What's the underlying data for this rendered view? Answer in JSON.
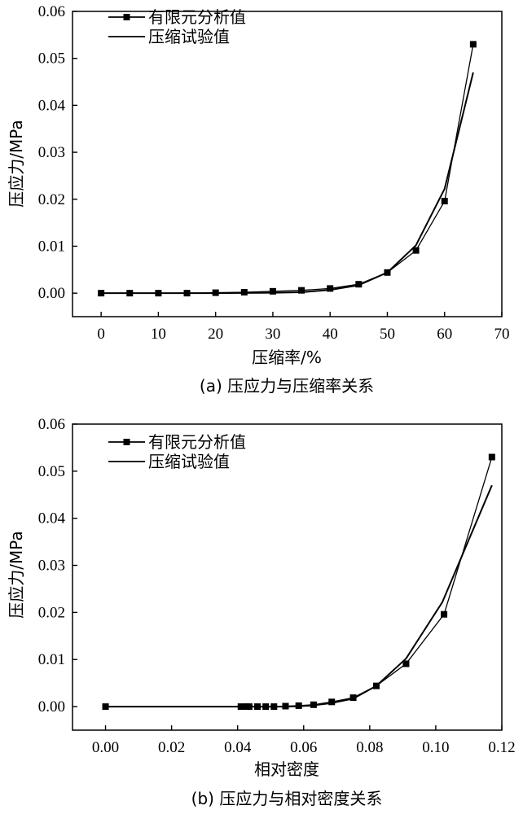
{
  "chart_data": [
    {
      "type": "line",
      "caption": "(a) 压应力与压缩率关系",
      "xlabel": "压缩率/%",
      "ylabel": "压应力/MPa",
      "xlim": [
        -5,
        70
      ],
      "ylim": [
        -0.005,
        0.06
      ],
      "xticks": [
        "0",
        "10",
        "20",
        "30",
        "40",
        "50",
        "60",
        "70"
      ],
      "yticks": [
        "0.00",
        "0.01",
        "0.02",
        "0.03",
        "0.04",
        "0.05",
        "0.06"
      ],
      "legend_position": "top-left",
      "series": [
        {
          "name": "有限元分析值",
          "marker": "square",
          "x": [
            0,
            5,
            10,
            15,
            20,
            25,
            30,
            35,
            40,
            45,
            50,
            55,
            60,
            65
          ],
          "y": [
            0.0,
            0.0,
            0.0,
            0.0,
            0.0001,
            0.0002,
            0.0004,
            0.0006,
            0.001,
            0.0019,
            0.0044,
            0.0091,
            0.0196,
            0.053
          ]
        },
        {
          "name": "压缩试验值",
          "marker": "none",
          "x": [
            0,
            10,
            20,
            30,
            35,
            40,
            45,
            50,
            55,
            60,
            65
          ],
          "y": [
            0.0,
            0.0,
            0.0,
            0.0001,
            0.0002,
            0.0007,
            0.0017,
            0.0044,
            0.0102,
            0.0222,
            0.047
          ]
        }
      ]
    },
    {
      "type": "line",
      "caption": "(b) 压应力与相对密度关系",
      "xlabel": "相对密度",
      "ylabel": "压应力/MPa",
      "xlim": [
        -0.01,
        0.12
      ],
      "ylim": [
        -0.005,
        0.06
      ],
      "xticks": [
        "0.00",
        "0.02",
        "0.04",
        "0.06",
        "0.08",
        "0.10",
        "0.12"
      ],
      "yticks": [
        "0.00",
        "0.01",
        "0.02",
        "0.03",
        "0.04",
        "0.05",
        "0.06"
      ],
      "legend_position": "top-left",
      "series": [
        {
          "name": "有限元分析值",
          "marker": "square",
          "x": [
            0.0,
            0.041,
            0.0425,
            0.0435,
            0.046,
            0.0485,
            0.051,
            0.0545,
            0.0585,
            0.063,
            0.0685,
            0.075,
            0.082,
            0.091,
            0.1025,
            0.117
          ],
          "y": [
            0.0,
            0.0,
            0.0,
            0.0,
            0.0,
            0.0,
            0.0,
            0.0001,
            0.0002,
            0.0004,
            0.001,
            0.0019,
            0.0044,
            0.0091,
            0.0196,
            0.053
          ]
        },
        {
          "name": "压缩试验值",
          "marker": "none",
          "x": [
            0.0,
            0.045,
            0.055,
            0.062,
            0.068,
            0.075,
            0.082,
            0.091,
            0.102,
            0.117
          ],
          "y": [
            0.0,
            0.0,
            0.0,
            0.0002,
            0.0007,
            0.0017,
            0.0044,
            0.0102,
            0.0222,
            0.047
          ]
        }
      ]
    }
  ]
}
